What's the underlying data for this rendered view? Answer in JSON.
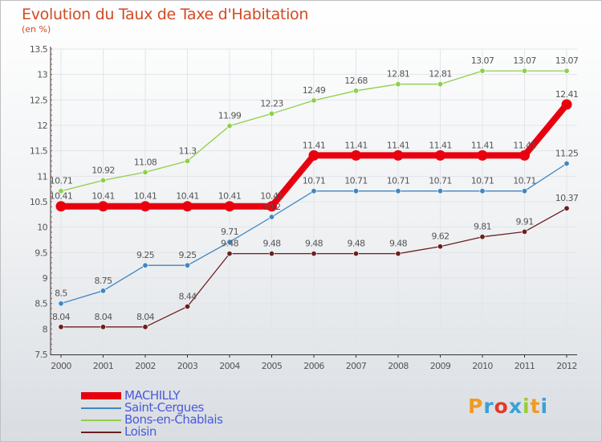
{
  "header": {
    "title": "Evolution du Taux de Taxe d'Habitation",
    "unit": "(en %)"
  },
  "brand": {
    "logo_text": "Proxiti"
  },
  "chart_data": {
    "type": "line",
    "categories": [
      "2000",
      "2001",
      "2002",
      "2003",
      "2004",
      "2005",
      "2006",
      "2007",
      "2008",
      "2009",
      "2010",
      "2011",
      "2012"
    ],
    "ylim": [
      7.5,
      13.5
    ],
    "yticks": [
      "7.5",
      "8",
      "8.5",
      "9",
      "9.5",
      "10",
      "10.5",
      "11",
      "11.5",
      "12",
      "12.5",
      "13",
      "13.5"
    ],
    "legend_position": "bottom-left",
    "series": [
      {
        "name": "MACHILLY",
        "color": "#e8000f",
        "values": [
          10.41,
          10.41,
          10.41,
          10.41,
          10.41,
          10.41,
          11.41,
          11.41,
          11.41,
          11.41,
          11.41,
          11.41,
          12.41
        ],
        "labels": [
          "10.41",
          "10.41",
          "10.41",
          "10.41",
          "10.41",
          "10.41",
          "11.41",
          "11.41",
          "11.41",
          "11.41",
          "11.41",
          "11.41",
          "12.41"
        ]
      },
      {
        "name": "Saint-Cergues",
        "color": "#3f86c2",
        "values": [
          8.5,
          8.75,
          9.25,
          9.25,
          9.71,
          10.2,
          10.71,
          10.71,
          10.71,
          10.71,
          10.71,
          10.71,
          11.25
        ],
        "labels": [
          "8.5",
          "8.75",
          "9.25",
          "9.25",
          "9.71",
          "10.2",
          "10.71",
          "10.71",
          "10.71",
          "10.71",
          "10.71",
          "10.71",
          "11.25"
        ]
      },
      {
        "name": "Bons-en-Chablais",
        "color": "#8fcf4a",
        "values": [
          10.71,
          10.92,
          11.08,
          11.3,
          11.99,
          12.23,
          12.49,
          12.68,
          12.81,
          12.81,
          13.07,
          13.07,
          13.07
        ],
        "labels": [
          "10.71",
          "10.92",
          "11.08",
          "11.3",
          "11.99",
          "12.23",
          "12.49",
          "12.68",
          "12.81",
          "12.81",
          "13.07",
          "13.07",
          "13.07"
        ]
      },
      {
        "name": "Loisin",
        "color": "#6b1f1f",
        "values": [
          8.04,
          8.04,
          8.04,
          8.44,
          9.48,
          9.48,
          9.48,
          9.48,
          9.48,
          9.62,
          9.81,
          9.91,
          10.37
        ],
        "labels": [
          "8.04",
          "8.04",
          "8.04",
          "8.44",
          "9.48",
          "9.48",
          "9.48",
          "9.48",
          "9.48",
          "9.62",
          "9.81",
          "9.91",
          "10.37"
        ]
      }
    ]
  },
  "legend": {
    "items": [
      {
        "label": "MACHILLY",
        "color": "#e8000f"
      },
      {
        "label": "Saint-Cergues",
        "color": "#3f86c2"
      },
      {
        "label": "Bons-en-Chablais",
        "color": "#8fcf4a"
      },
      {
        "label": "Loisin",
        "color": "#6b1f1f"
      }
    ]
  },
  "logo_colors": [
    "#f29a1f",
    "#3aa0d8",
    "#e23a2a",
    "#3aa0d8",
    "#9bcc3a",
    "#f29a1f",
    "#3aa0d8"
  ]
}
